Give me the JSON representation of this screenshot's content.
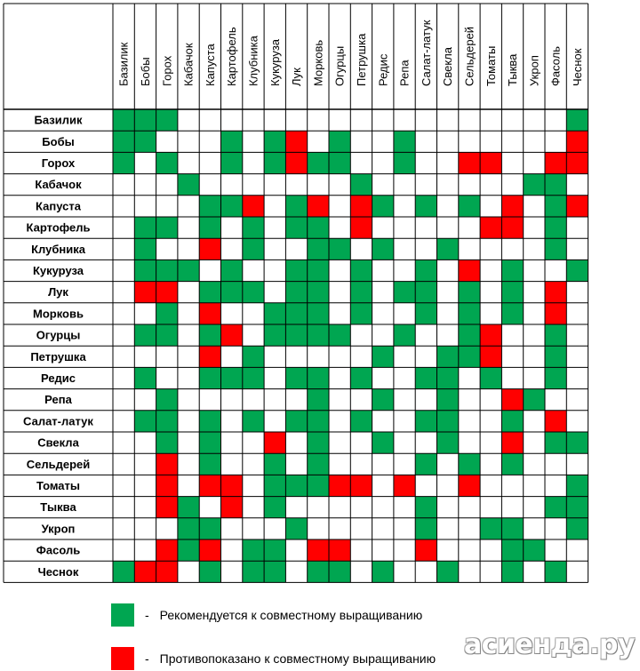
{
  "chart_data": {
    "type": "heatmap",
    "rows": [
      "Базилик",
      "Бобы",
      "Горох",
      "Кабачок",
      "Капуста",
      "Картофель",
      "Клубника",
      "Кукуруза",
      "Лук",
      "Морковь",
      "Огурцы",
      "Петрушка",
      "Редис",
      "Репа",
      "Салат-латук",
      "Свекла",
      "Сельдерей",
      "Томаты",
      "Тыква",
      "Укроп",
      "Фасоль",
      "Чеснок"
    ],
    "columns": [
      "Базилик",
      "Бобы",
      "Горох",
      "Кабачок",
      "Капуста",
      "Картофель",
      "Клубника",
      "Кукуруза",
      "Лук",
      "Морковь",
      "Огурцы",
      "Петрушка",
      "Редис",
      "Репа",
      "Салат-латук",
      "Свекла",
      "Сельдерей",
      "Томаты",
      "Тыква",
      "Укроп",
      "Фасоль",
      "Чеснок"
    ],
    "value_meaning": {
      "G": "recommended",
      "R": "contraindicated",
      ".": "none"
    },
    "grid": [
      "GGG..................G",
      "GG...G.GR.G..G.......R",
      "G.G..G.GRGG..G..RR..RR",
      "...G.......G.......GG.",
      "....GGR.GR.RG.G.G.R.GR",
      ".GG.G.G.GG.R.....RR.G.",
      ".G..R.G..GG.G..G....G.",
      ".GGG.G..GG.G..G.R.G..G",
      ".RR.GGG.GG.G.GG.G.G.R.",
      "..G.R..GGG.G..G.G.G.R.",
      ".GG.GR.GGGG..G..GR..G.",
      "....R.G.....G..GGR..G.",
      ".G..GGG.GG.G..GG.G..G.",
      "..G......G..G..G..RG..",
      ".GG.G.G.GG.G..GG..G.R.",
      "..G.G..R.G..G..G..R.GG",
      "..R.G..G.G....G.G.G...",
      "..R.RR.GGGRR.R..R....G",
      "..RG.R.G......G.....GG",
      "...GG...G.....G..GG..G",
      "..RGR.GG.RR...R...GG..",
      "GRR.G.GG.GG.G..G..G.G."
    ],
    "legend": [
      {
        "key": "G",
        "color": "#00a651",
        "label": "Рекомендуется к совместному выращиванию"
      },
      {
        "key": "R",
        "color": "#ff0000",
        "label": "Противопоказано к совместному выращиванию"
      }
    ],
    "colors": {
      "green": "#00a651",
      "red": "#ff0000",
      "empty": "#ffffff",
      "grid": "#000000"
    }
  },
  "legend_items": [
    {
      "dash": "-",
      "label": "Рекомендуется к совместному выращиванию"
    },
    {
      "dash": "-",
      "label": "Противопоказано к совместному выращиванию"
    }
  ],
  "watermark": "асиенда.ру"
}
